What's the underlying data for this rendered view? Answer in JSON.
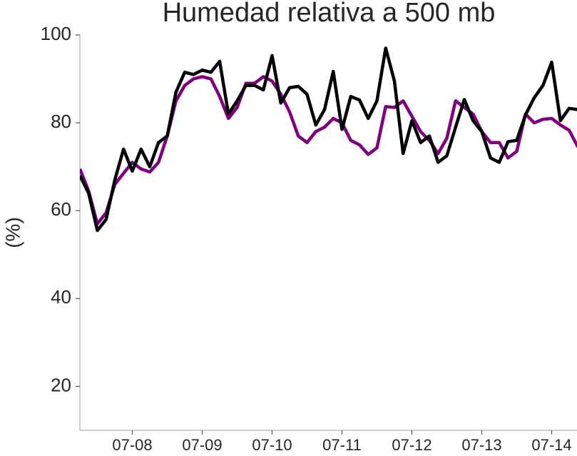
{
  "chart_data": {
    "type": "line",
    "title": "Humedad relativa a 500 mb",
    "y_label": "(%)",
    "categories": [
      null,
      null,
      null,
      null,
      null,
      null,
      "07-08",
      null,
      null,
      null,
      null,
      null,
      null,
      null,
      "07-09",
      null,
      null,
      null,
      null,
      null,
      null,
      null,
      "07-10",
      null,
      null,
      null,
      null,
      null,
      null,
      null,
      "07-11",
      null,
      null,
      null,
      null,
      null,
      null,
      null,
      "07-12",
      null,
      null,
      null,
      null,
      null,
      null,
      null,
      "07-13",
      null,
      null,
      null,
      null,
      null,
      null,
      null,
      "07-14",
      null,
      null,
      null
    ],
    "series": [
      {
        "color": "#800080",
        "values": [
          69.5,
          64.5,
          57,
          59.5,
          66,
          68.5,
          71,
          69.5,
          68.8,
          71,
          77,
          85,
          88.5,
          90,
          90.5,
          90,
          86,
          81,
          83.5,
          89,
          89,
          90.5,
          89.5,
          86.5,
          82.5,
          77,
          75.5,
          78,
          79,
          81,
          80,
          76,
          75,
          72.8,
          74.3,
          83.7,
          83.5,
          85,
          81.5,
          78,
          76,
          73,
          76.5,
          85,
          83.5,
          82,
          78,
          75.5,
          75.5,
          72,
          73.5,
          82,
          80,
          80.8,
          81,
          79.5,
          78.3,
          74.5
        ]
      },
      {
        "color": "#000000",
        "values": [
          68,
          64,
          55.5,
          58,
          67,
          74,
          69,
          74,
          70,
          75.5,
          77,
          87,
          91.5,
          91,
          92,
          91.5,
          94,
          82,
          85,
          88.5,
          88.5,
          87.5,
          95.3,
          84.5,
          88,
          88.3,
          86.5,
          79.5,
          83,
          91.7,
          78.5,
          86,
          85.2,
          81,
          85,
          97,
          89.5,
          73,
          80.5,
          75.5,
          77,
          71,
          72.5,
          79,
          85.3,
          80.5,
          78,
          72,
          71,
          75.7,
          76,
          81.8,
          85.7,
          88.5,
          93.8,
          80.5,
          83.3,
          83
        ]
      }
    ],
    "ylim": [
      10,
      100
    ],
    "yticks": [
      20,
      40,
      60,
      80,
      100
    ],
    "grid": false
  }
}
